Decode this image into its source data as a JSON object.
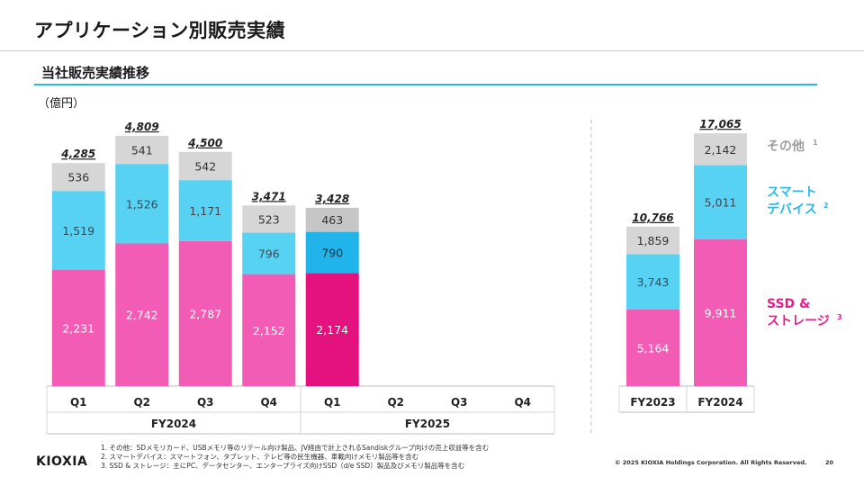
{
  "page": {
    "title": "アプリケーション別販売実績",
    "subtitle": "当社販売実績推移",
    "unit": "（億円）"
  },
  "chart_data": {
    "type": "bar",
    "stacked": true,
    "unit": "（億円）",
    "layer_order": [
      "SSD & ストレージ",
      "スマートデバイス",
      "その他"
    ],
    "legend": [
      {
        "name": "その他",
        "sup": "1",
        "color": "#9e9e9e"
      },
      {
        "name": "スマートデバイス",
        "lines": [
          "スマート",
          "デバイス"
        ],
        "sup": "2",
        "color": "#29b8e6"
      },
      {
        "name": "SSD & ストレージ",
        "lines": [
          "SSD &",
          "ストレージ"
        ],
        "sup": "3",
        "color": "#e61e8c"
      }
    ],
    "colors": {
      "ssd": "#f25cb5",
      "ssd_highlight": "#e3127f",
      "smart": "#57d2f2",
      "smart_highlight": "#20b4ea",
      "other": "#d6d6d6",
      "other_highlight": "#c6c6c6"
    },
    "quarterly": {
      "groups": [
        {
          "label": "FY2024",
          "categories": [
            "Q1",
            "Q2",
            "Q3",
            "Q4"
          ]
        },
        {
          "label": "FY2025",
          "categories": [
            "Q1",
            "Q2",
            "Q3",
            "Q4"
          ]
        }
      ],
      "bars": [
        {
          "group": "FY2024",
          "category": "Q1",
          "total": "4,285",
          "ssd": 2231,
          "smart": 1519,
          "other": 536
        },
        {
          "group": "FY2024",
          "category": "Q2",
          "total": "4,809",
          "ssd": 2742,
          "smart": 1526,
          "other": 541
        },
        {
          "group": "FY2024",
          "category": "Q3",
          "total": "4,500",
          "ssd": 2787,
          "smart": 1171,
          "other": 542
        },
        {
          "group": "FY2024",
          "category": "Q4",
          "total": "3,471",
          "ssd": 2152,
          "smart": 796,
          "other": 523
        },
        {
          "group": "FY2025",
          "category": "Q1",
          "total": "3,428",
          "ssd": 2174,
          "smart": 790,
          "other": 463,
          "highlight": true
        },
        {
          "group": "FY2025",
          "category": "Q2",
          "total": null
        },
        {
          "group": "FY2025",
          "category": "Q3",
          "total": null
        },
        {
          "group": "FY2025",
          "category": "Q4",
          "total": null
        }
      ]
    },
    "annual": {
      "categories": [
        "FY2023",
        "FY2024"
      ],
      "bars": [
        {
          "category": "FY2023",
          "total": "10,766",
          "ssd": 5164,
          "smart": 3743,
          "other": 1859
        },
        {
          "category": "FY2024",
          "total": "17,065",
          "ssd": 9911,
          "smart": 5011,
          "other": 2142
        }
      ]
    }
  },
  "footnotes": [
    "1. その他：SDメモリカード、USBメモリ等のリテール向け製品、JV経由で計上されるSandiskグループ向けの売上収益等を含む",
    "2. スマートデバイス：スマートフォン、タブレット、テレビ等の民生機器、車載向けメモリ製品等を含む",
    "3. SSD & ストレージ：主にPC、データセンター、エンタープライズ向けSSD（d/e SSD）製品及びメモリ製品等を含む"
  ],
  "footer": {
    "logo": "KIOXIA",
    "copyright": "© 2025 KIOXIA Holdings Corporation. All Rights Reserved.",
    "page_number": "20"
  }
}
